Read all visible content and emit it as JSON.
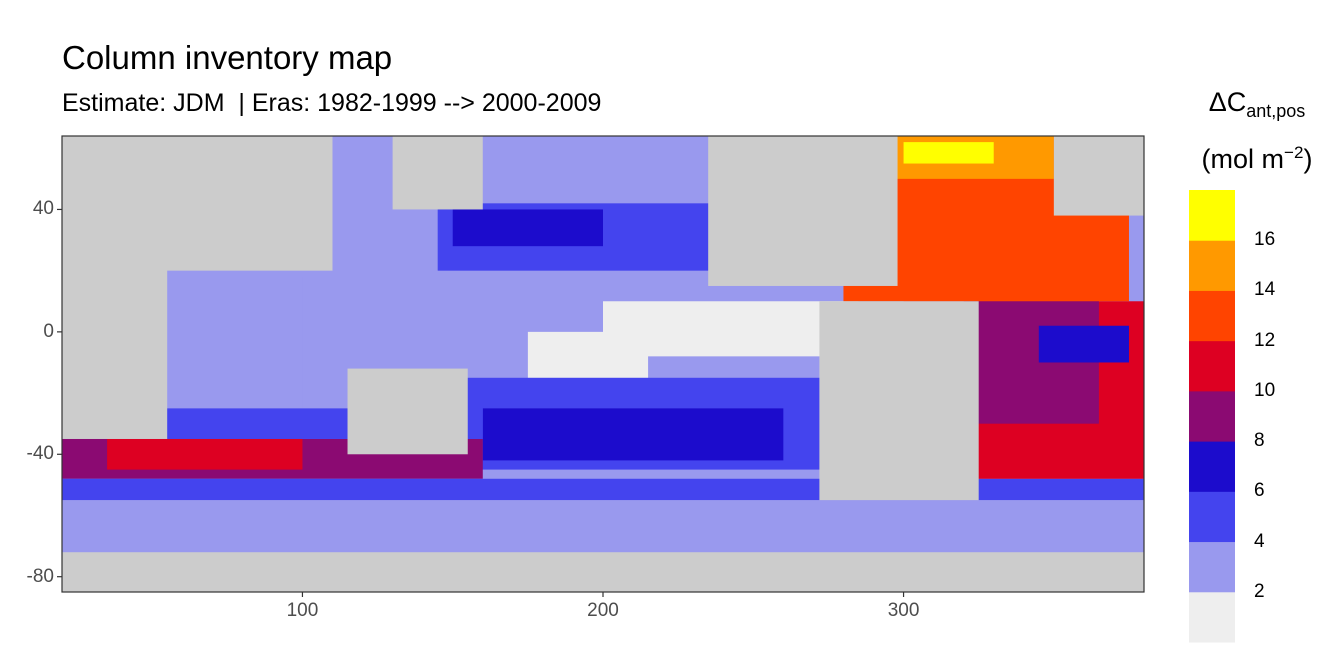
{
  "title": "Column inventory map",
  "subtitle": "Estimate: JDM  | Eras: 1982-1999 --> 2000-2009",
  "legend": {
    "title_main": "ΔC",
    "title_sub": "ant,pos",
    "unit_open": "(mol m",
    "unit_exp": "−2",
    "unit_close": ")"
  },
  "chart_data": {
    "type": "heatmap",
    "title": "Column inventory map",
    "subtitle": "Estimate: JDM  | Eras: 1982-1999 --> 2000-2009",
    "xlabel": "",
    "ylabel": "",
    "xlim": [
      20,
      380
    ],
    "ylim": [
      -85,
      64
    ],
    "x_ticks": [
      100,
      200,
      300
    ],
    "x_tick_labels": [
      "100",
      "200",
      "300"
    ],
    "y_ticks": [
      40,
      0,
      -40,
      -80
    ],
    "y_tick_labels": [
      "40",
      "0",
      "-40",
      "-80"
    ],
    "grid": false,
    "legend_position": "right",
    "legend_title": "ΔCant,pos (mol m−2)",
    "bins": [
      {
        "range": [
          0,
          2
        ],
        "color": "#eeeeee"
      },
      {
        "range": [
          2,
          4
        ],
        "color": "#9999ee"
      },
      {
        "range": [
          4,
          6
        ],
        "color": "#4444ee"
      },
      {
        "range": [
          6,
          8
        ],
        "color": "#1c0ccc"
      },
      {
        "range": [
          8,
          10
        ],
        "color": "#8b0a72"
      },
      {
        "range": [
          10,
          12
        ],
        "color": "#dd0022"
      },
      {
        "range": [
          12,
          14
        ],
        "color": "#ff4400"
      },
      {
        "range": [
          14,
          16
        ],
        "color": "#ff9900"
      },
      {
        "range": [
          16,
          18
        ],
        "color": "#ffff00"
      }
    ],
    "legend_tick_labels": [
      "2",
      "4",
      "6",
      "8",
      "10",
      "12",
      "14",
      "16"
    ],
    "land_color": "#cccccc",
    "regions": [
      {
        "lon": [
          20,
          380
        ],
        "lat": [
          -85,
          64
        ],
        "value": 3
      },
      {
        "lon": [
          145,
          260
        ],
        "lat": [
          20,
          42
        ],
        "value": 5
      },
      {
        "lon": [
          150,
          200
        ],
        "lat": [
          28,
          40
        ],
        "value": 6
      },
      {
        "lon": [
          200,
          285
        ],
        "lat": [
          -8,
          10
        ],
        "value": 1
      },
      {
        "lon": [
          175,
          215
        ],
        "lat": [
          -20,
          0
        ],
        "value": 1
      },
      {
        "lon": [
          50,
          100
        ],
        "lat": [
          -30,
          18
        ],
        "value": 3
      },
      {
        "lon": [
          150,
          275
        ],
        "lat": [
          -45,
          -15
        ],
        "value": 5
      },
      {
        "lon": [
          160,
          260
        ],
        "lat": [
          -42,
          -25
        ],
        "value": 7
      },
      {
        "lon": [
          20,
          160
        ],
        "lat": [
          -48,
          -35
        ],
        "value": 9
      },
      {
        "lon": [
          35,
          100
        ],
        "lat": [
          -45,
          -33
        ],
        "value": 11
      },
      {
        "lon": [
          20,
          160
        ],
        "lat": [
          -35,
          -25
        ],
        "value": 5
      },
      {
        "lon": [
          20,
          380
        ],
        "lat": [
          -55,
          -48
        ],
        "value": 5
      },
      {
        "lon": [
          20,
          380
        ],
        "lat": [
          -70,
          -55
        ],
        "value": 3
      },
      {
        "lon": [
          300,
          380
        ],
        "lat": [
          -48,
          10
        ],
        "value": 11
      },
      {
        "lon": [
          320,
          365
        ],
        "lat": [
          -30,
          20
        ],
        "value": 9
      },
      {
        "lon": [
          345,
          375
        ],
        "lat": [
          -10,
          2
        ],
        "value": 7
      },
      {
        "lon": [
          280,
          375
        ],
        "lat": [
          10,
          45
        ],
        "value": 12
      },
      {
        "lon": [
          290,
          370
        ],
        "lat": [
          40,
          64
        ],
        "value": 13
      },
      {
        "lon": [
          295,
          350
        ],
        "lat": [
          50,
          64
        ],
        "value": 15
      },
      {
        "lon": [
          300,
          330
        ],
        "lat": [
          55,
          62
        ],
        "value": 17
      }
    ],
    "land": [
      {
        "lon": [
          20,
          110
        ],
        "lat": [
          20,
          64
        ]
      },
      {
        "lon": [
          20,
          55
        ],
        "lat": [
          -35,
          30
        ]
      },
      {
        "lon": [
          115,
          155
        ],
        "lat": [
          -40,
          -12
        ]
      },
      {
        "lon": [
          272,
          325
        ],
        "lat": [
          -55,
          10
        ]
      },
      {
        "lon": [
          235,
          298
        ],
        "lat": [
          15,
          64
        ]
      },
      {
        "lon": [
          350,
          380
        ],
        "lat": [
          38,
          64
        ]
      },
      {
        "lon": [
          20,
          380
        ],
        "lat": [
          -85,
          -72
        ]
      },
      {
        "lon": [
          130,
          160
        ],
        "lat": [
          40,
          64
        ]
      }
    ]
  }
}
